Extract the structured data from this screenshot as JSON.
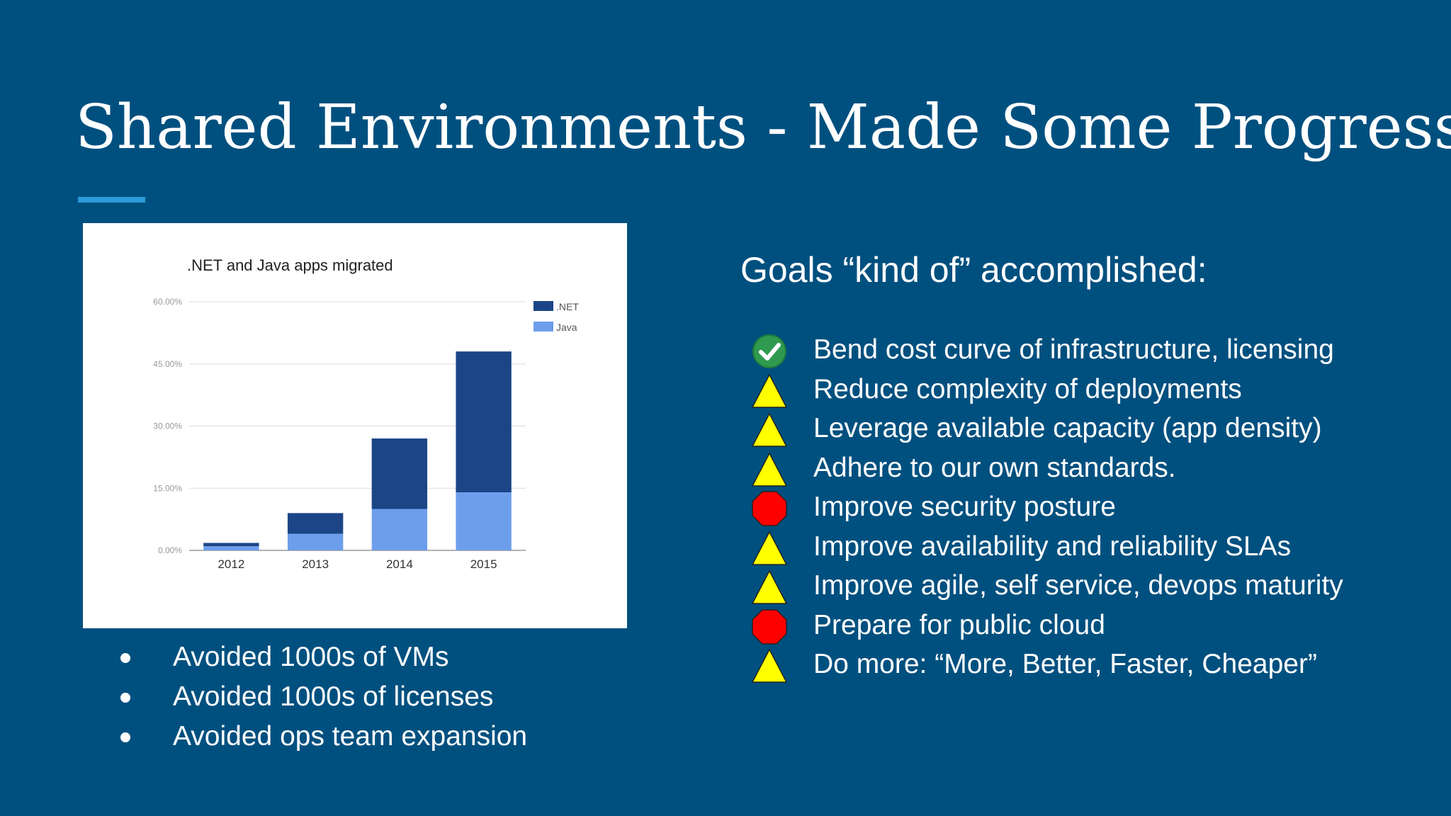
{
  "slide": {
    "title": "Shared Environments - Made Some Progress",
    "accent_color": "#2c9ad8",
    "background_color": "#00507f"
  },
  "left_bullets": [
    "Avoided 1000s of VMs",
    "Avoided 1000s of licenses",
    "Avoided ops team expansion"
  ],
  "goals": {
    "heading": "Goals “kind of” accomplished:",
    "items": [
      {
        "icon": "check-icon",
        "text": "Bend cost curve of infrastructure, licensing"
      },
      {
        "icon": "warning-icon",
        "text": "Reduce complexity of deployments"
      },
      {
        "icon": "warning-icon",
        "text": "Leverage available capacity (app density)"
      },
      {
        "icon": "warning-icon",
        "text": "Adhere to our own standards."
      },
      {
        "icon": "stop-icon",
        "text": "Improve security posture"
      },
      {
        "icon": "warning-icon",
        "text": "Improve availability and reliability SLAs"
      },
      {
        "icon": "warning-icon",
        "text": "Improve agile, self service, devops maturity"
      },
      {
        "icon": "stop-icon",
        "text": "Prepare for public cloud"
      },
      {
        "icon": "warning-icon",
        "text": "Do more: “More, Better, Faster, Cheaper”"
      }
    ]
  },
  "chart_data": {
    "type": "bar",
    "stacked": true,
    "title": ".NET and Java apps migrated",
    "categories": [
      "2012",
      "2013",
      "2014",
      "2015"
    ],
    "series": [
      {
        "name": "Java",
        "color": "#6d9eeb",
        "values": [
          1.0,
          4.0,
          10.0,
          14.0
        ]
      },
      {
        "name": ".NET",
        "color": "#1c4587",
        "values": [
          0.8,
          5.0,
          17.0,
          34.0
        ]
      }
    ],
    "ylim": [
      0,
      60
    ],
    "yticks": [
      "0.00%",
      "15.00%",
      "30.00%",
      "45.00%",
      "60.00%"
    ],
    "ytick_values": [
      0,
      15,
      30,
      45,
      60
    ],
    "legend": ".NET / Java, top-right",
    "grid": true
  }
}
